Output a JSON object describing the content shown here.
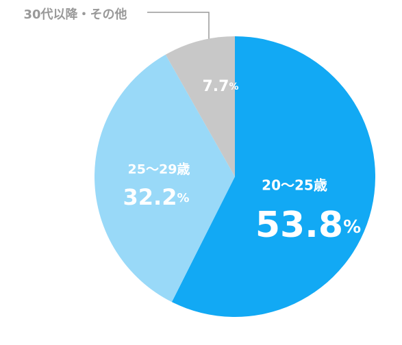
{
  "chart_data": {
    "type": "pie",
    "categories": [
      "20〜25歳",
      "25〜29歳",
      "30代以降・その他"
    ],
    "values": [
      53.8,
      32.2,
      7.7
    ],
    "unit": "%",
    "colors": [
      "#12a9f4",
      "#99d9f8",
      "#c8c8c8"
    ]
  }
}
